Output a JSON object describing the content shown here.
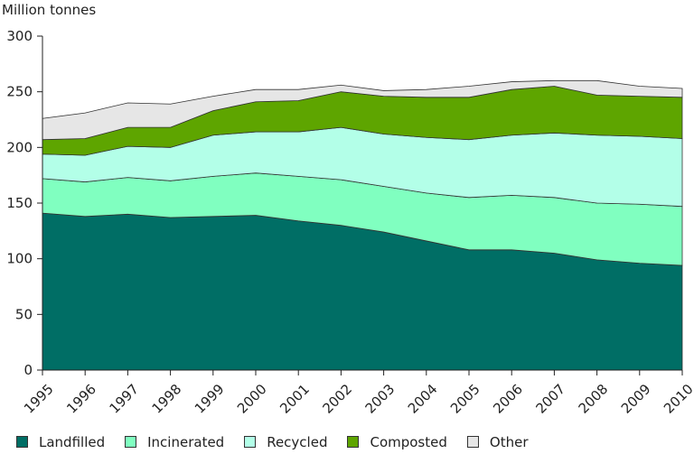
{
  "chart_data": {
    "type": "area",
    "stacked": true,
    "ylabel": "Million tonnes",
    "ylim": [
      0,
      300
    ],
    "yticks": [
      0,
      50,
      100,
      150,
      200,
      250,
      300
    ],
    "x": [
      "1995",
      "1996",
      "1997",
      "1998",
      "1999",
      "2000",
      "2001",
      "2002",
      "2003",
      "2004",
      "2005",
      "2006",
      "2007",
      "2008",
      "2009",
      "2010"
    ],
    "grid": false,
    "legend_position": "bottom",
    "series": [
      {
        "name": "Landfilled",
        "color": "#006e65",
        "values": [
          141,
          138,
          140,
          137,
          138,
          139,
          134,
          130,
          124,
          116,
          108,
          108,
          105,
          99,
          96,
          94
        ]
      },
      {
        "name": "Incinerated",
        "color": "#80ffc0",
        "values": [
          31,
          31,
          33,
          33,
          36,
          38,
          40,
          41,
          41,
          43,
          47,
          49,
          50,
          51,
          53,
          53
        ]
      },
      {
        "name": "Recycled",
        "color": "#b3ffe8",
        "values": [
          22,
          24,
          28,
          30,
          37,
          37,
          40,
          47,
          47,
          50,
          52,
          54,
          58,
          61,
          61,
          61
        ]
      },
      {
        "name": "Composted",
        "color": "#5ea500",
        "values": [
          13,
          15,
          17,
          18,
          22,
          27,
          28,
          32,
          34,
          36,
          38,
          41,
          42,
          36,
          36,
          37
        ]
      },
      {
        "name": "Other",
        "color": "#e6e6e6",
        "values": [
          19,
          23,
          22,
          21,
          13,
          11,
          10,
          6,
          5,
          7,
          10,
          7,
          5,
          13,
          9,
          8
        ]
      }
    ]
  }
}
